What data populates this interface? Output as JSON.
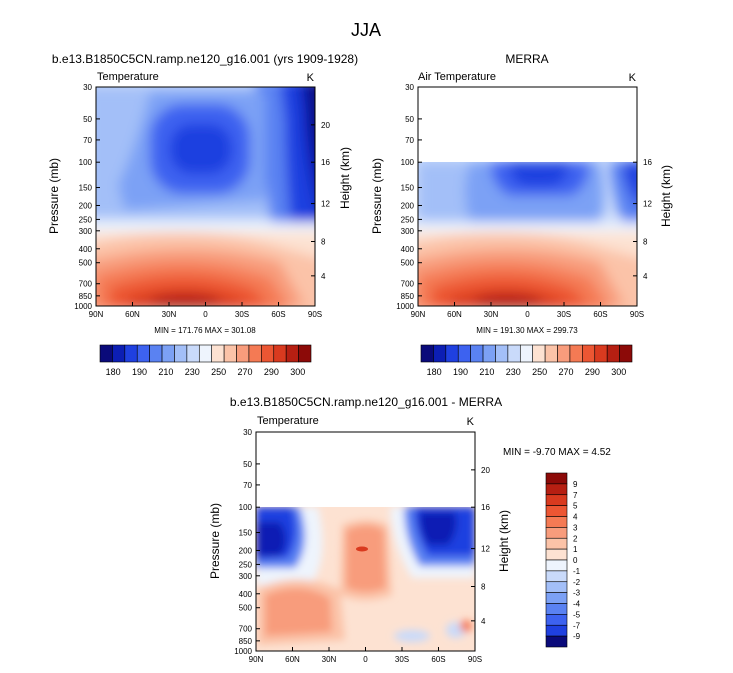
{
  "figure_title": "JJA",
  "chart_data": [
    {
      "type": "heatmap",
      "id": "model",
      "title": "b.e13.B1850C5CN.ramp.ne120_g16.001 (yrs 1909-1928)",
      "left_label": "Temperature",
      "right_label": "K",
      "xlabel": "",
      "ylabel": "Pressure (mb)",
      "y2label": "Height (km)",
      "x_ticks": [
        "90N",
        "60N",
        "30N",
        "0",
        "30S",
        "60S",
        "90S"
      ],
      "y_ticks": [
        "30",
        "50",
        "70",
        "100",
        "150",
        "200",
        "250",
        "300",
        "400",
        "500",
        "700",
        "850",
        "1000"
      ],
      "y2_ticks": [
        "20",
        "16",
        "12",
        "8",
        "4"
      ],
      "ylim": [
        1000,
        30
      ],
      "min_max_text": "MIN = 171.76   MAX = 301.08",
      "data_top_mb": 30
    },
    {
      "type": "heatmap",
      "id": "obs",
      "title": "MERRA",
      "left_label": "Air Temperature",
      "right_label": "K",
      "xlabel": "",
      "ylabel": "Pressure (mb)",
      "y2label": "Height (km)",
      "x_ticks": [
        "90N",
        "60N",
        "30N",
        "0",
        "30S",
        "60S",
        "90S"
      ],
      "y_ticks": [
        "30",
        "50",
        "70",
        "100",
        "150",
        "200",
        "250",
        "300",
        "400",
        "500",
        "700",
        "850",
        "1000"
      ],
      "y2_ticks": [
        "16",
        "12",
        "8",
        "4"
      ],
      "ylim": [
        1000,
        30
      ],
      "min_max_text": "MIN = 191.30   MAX = 299.73",
      "data_top_mb": 100
    },
    {
      "type": "heatmap",
      "id": "diff",
      "title": "b.e13.B1850C5CN.ramp.ne120_g16.001 - MERRA",
      "left_label": "Temperature",
      "right_label": "K",
      "xlabel": "",
      "ylabel": "Pressure (mb)",
      "y2label": "Height (km)",
      "x_ticks": [
        "90N",
        "60N",
        "30N",
        "0",
        "30S",
        "60S",
        "90S"
      ],
      "y_ticks": [
        "30",
        "50",
        "70",
        "100",
        "150",
        "200",
        "250",
        "300",
        "400",
        "500",
        "700",
        "850",
        "1000"
      ],
      "y2_ticks": [
        "20",
        "16",
        "12",
        "8",
        "4"
      ],
      "ylim": [
        1000,
        30
      ],
      "min_max_text": "MIN =  -9.70   MAX =   4.52",
      "data_top_mb": 100
    }
  ],
  "colorbar_abs": {
    "labels": [
      "180",
      "190",
      "210",
      "230",
      "250",
      "270",
      "290",
      "300"
    ],
    "colors": [
      "#0a0a7a",
      "#0c1eb4",
      "#1f40e0",
      "#3d62f0",
      "#5a82f2",
      "#7ca1f5",
      "#a3bff8",
      "#c9dafa",
      "#eef4fd",
      "#fde2d2",
      "#fbc3a8",
      "#f89c7c",
      "#f47a54",
      "#ec5633",
      "#d93a1f",
      "#b61f12",
      "#8c0a08"
    ]
  },
  "colorbar_diff": {
    "labels": [
      "9",
      "7",
      "5",
      "4",
      "3",
      "2",
      "1",
      "0",
      "-1",
      "-2",
      "-3",
      "-4",
      "-5",
      "-7",
      "-9"
    ],
    "colors": [
      "#8c0a08",
      "#b61f12",
      "#d93a1f",
      "#ec5633",
      "#f47a54",
      "#f89c7c",
      "#fbc3a8",
      "#fde2d2",
      "#eef4fd",
      "#c9dafa",
      "#a3bff8",
      "#7ca1f5",
      "#5a82f2",
      "#3d62f0",
      "#1f40e0",
      "#0a0a7a"
    ]
  }
}
